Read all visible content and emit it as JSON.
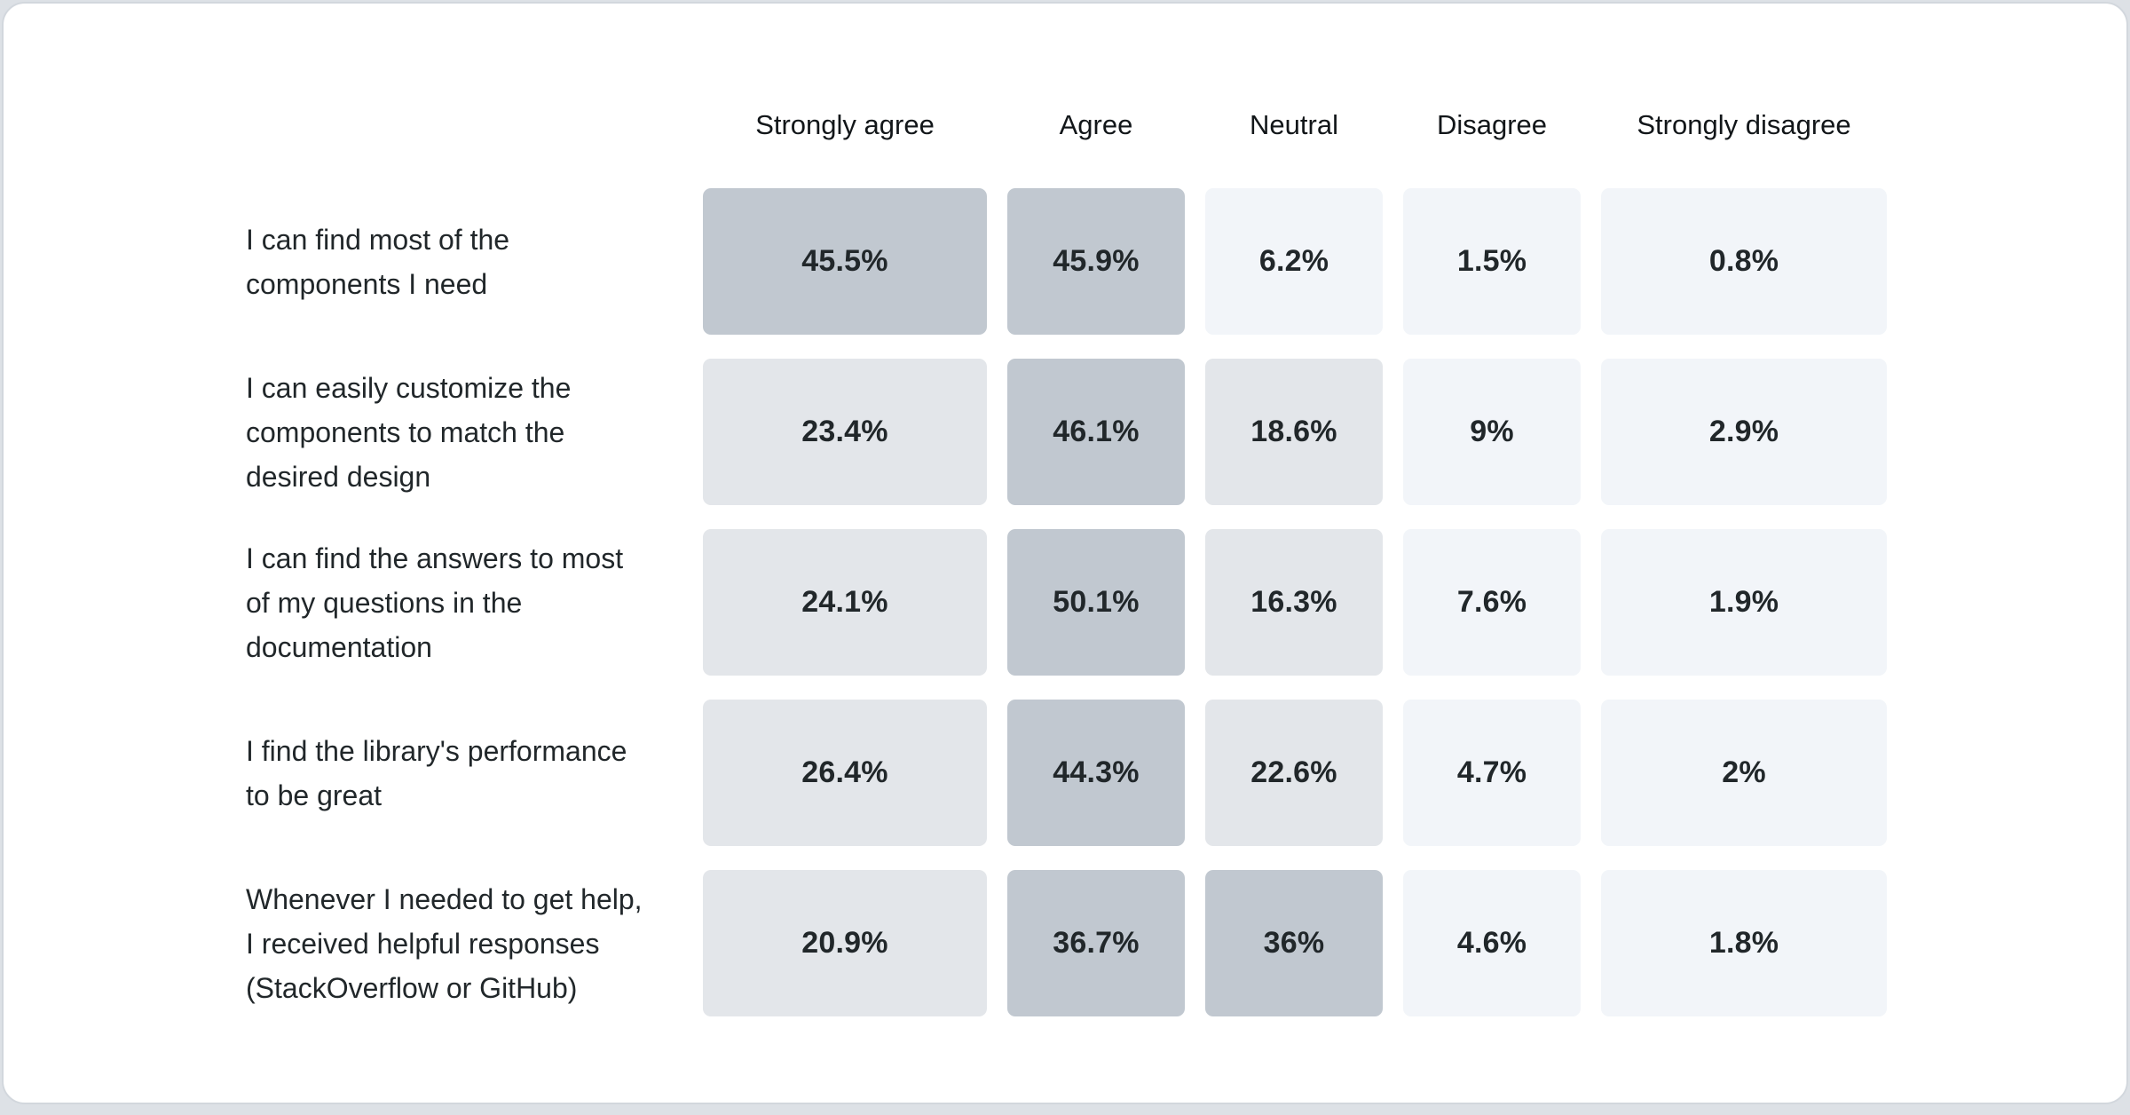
{
  "page": {
    "background_color": "#dde1e6",
    "card_background_color": "#ffffff",
    "card_border_color": "#d2d7dd"
  },
  "chart_data": {
    "type": "heatmap",
    "title": "",
    "columns": [
      "Strongly agree",
      "Agree",
      "Neutral",
      "Disagree",
      "Strongly disagree"
    ],
    "rows": [
      {
        "label": "I can find most of the components I need",
        "values": [
          45.5,
          45.9,
          6.2,
          1.5,
          0.8
        ],
        "display": [
          "45.5%",
          "45.9%",
          "6.2%",
          "1.5%",
          "0.8%"
        ]
      },
      {
        "label": "I can easily customize the components to match the desired design",
        "values": [
          23.4,
          46.1,
          18.6,
          9,
          2.9
        ],
        "display": [
          "23.4%",
          "46.1%",
          "18.6%",
          "9%",
          "2.9%"
        ]
      },
      {
        "label": "I can find the answers to most of my questions in the documentation",
        "values": [
          24.1,
          50.1,
          16.3,
          7.6,
          1.9
        ],
        "display": [
          "24.1%",
          "50.1%",
          "16.3%",
          "7.6%",
          "1.9%"
        ]
      },
      {
        "label": "I find the library's performance to be great",
        "values": [
          26.4,
          44.3,
          22.6,
          4.7,
          2
        ],
        "display": [
          "26.4%",
          "44.3%",
          "22.6%",
          "4.7%",
          "2%"
        ]
      },
      {
        "label": "Whenever I needed to get help, I received helpful responses (StackOverflow or GitHub)",
        "values": [
          20.9,
          36.7,
          36,
          4.6,
          1.8
        ],
        "display": [
          "20.9%",
          "36.7%",
          "36%",
          "4.6%",
          "1.8%"
        ]
      }
    ],
    "value_suffix": "%",
    "color_scale": {
      "thresholds": [
        10,
        30
      ],
      "colors": [
        "#f2f5f9",
        "#e3e6ea",
        "#c1c8d0"
      ]
    },
    "value_text_color": "#21272a",
    "header_text_color": "#121619",
    "row_label_text_color": "#21272a",
    "legend": "none",
    "grid": "off"
  }
}
